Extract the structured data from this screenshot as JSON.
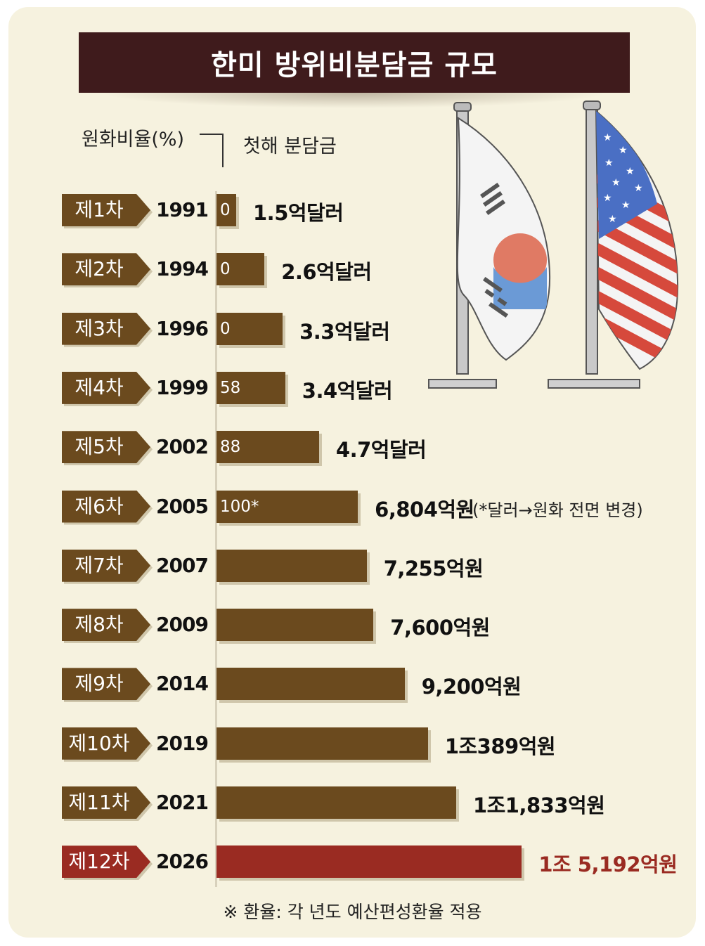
{
  "title": "한미 방위비분담금 규모",
  "headers": {
    "ratio": "원화비율(%)",
    "first_year": "첫해 분담금"
  },
  "footnote": "※ 환율: 각 년도 예산편성환율 적용",
  "note_6": "(*달러→원화 전면 변경)",
  "colors": {
    "bar": "#6b4a1e",
    "highlight": "#9a2b22",
    "title_bg": "#3f1b1c",
    "background": "#f6f2df"
  },
  "flags": [
    "south-korea-flag",
    "usa-flag"
  ],
  "chart_data": {
    "type": "bar",
    "orientation": "horizontal",
    "title": "한미 방위비분담금 규모",
    "categories": [
      "제1차",
      "제2차",
      "제3차",
      "제4차",
      "제5차",
      "제6차",
      "제7차",
      "제8차",
      "제9차",
      "제10차",
      "제11차",
      "제12차"
    ],
    "years": [
      "1991",
      "1994",
      "1996",
      "1999",
      "2002",
      "2005",
      "2007",
      "2009",
      "2014",
      "2019",
      "2021",
      "2026"
    ],
    "won_ratio_labels": [
      "0",
      "0",
      "0",
      "58",
      "88",
      "100*",
      "",
      "",
      "",
      "",
      "",
      ""
    ],
    "amount_labels": [
      "1.5억달러",
      "2.6억달러",
      "3.3억달러",
      "3.4억달러",
      "4.7억달러",
      "6,804억원",
      "7,255억원",
      "7,600억원",
      "9,200억원",
      "1조389억원",
      "1조1,833억원",
      "1조 5,192억원"
    ],
    "currency": [
      "USD",
      "USD",
      "USD",
      "USD",
      "USD",
      "KRW",
      "KRW",
      "KRW",
      "KRW",
      "KRW",
      "KRW",
      "KRW"
    ],
    "values_usd_100m": [
      1.5,
      2.6,
      3.3,
      3.4,
      4.7,
      null,
      null,
      null,
      null,
      null,
      null,
      null
    ],
    "values_krw_100m": [
      null,
      null,
      null,
      null,
      null,
      6804,
      7255,
      7600,
      9200,
      10389,
      11833,
      15192
    ],
    "highlight_index": 11
  }
}
